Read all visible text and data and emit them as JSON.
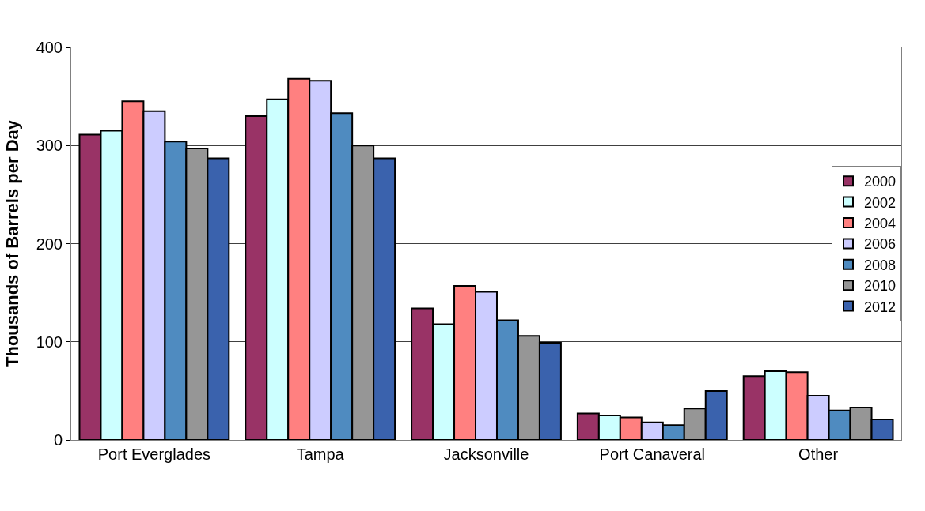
{
  "chart_data": {
    "type": "bar",
    "ylabel": "Thousands of Barrels per Day",
    "categories": [
      "Port Everglades",
      "Tampa",
      "Jacksonville",
      "Port Canaveral",
      "Other"
    ],
    "series": [
      {
        "name": "2000",
        "color": "#993366",
        "values": [
          311,
          330,
          134,
          27,
          65
        ]
      },
      {
        "name": "2002",
        "color": "#ccffff",
        "values": [
          315,
          347,
          118,
          25,
          70
        ]
      },
      {
        "name": "2004",
        "color": "#ff8080",
        "values": [
          345,
          368,
          157,
          23,
          69
        ]
      },
      {
        "name": "2006",
        "color": "#ccccff",
        "values": [
          335,
          366,
          151,
          18,
          45
        ]
      },
      {
        "name": "2008",
        "color": "#4f8bc0",
        "values": [
          304,
          333,
          122,
          15,
          30
        ]
      },
      {
        "name": "2010",
        "color": "#969696",
        "values": [
          297,
          300,
          106,
          32,
          33
        ]
      },
      {
        "name": "2012",
        "color": "#3a62ad",
        "values": [
          287,
          287,
          99,
          50,
          21
        ]
      }
    ],
    "ylim": [
      0,
      400
    ],
    "yticks": [
      0,
      100,
      200,
      300,
      400
    ],
    "grid": "y",
    "legend": "right"
  }
}
